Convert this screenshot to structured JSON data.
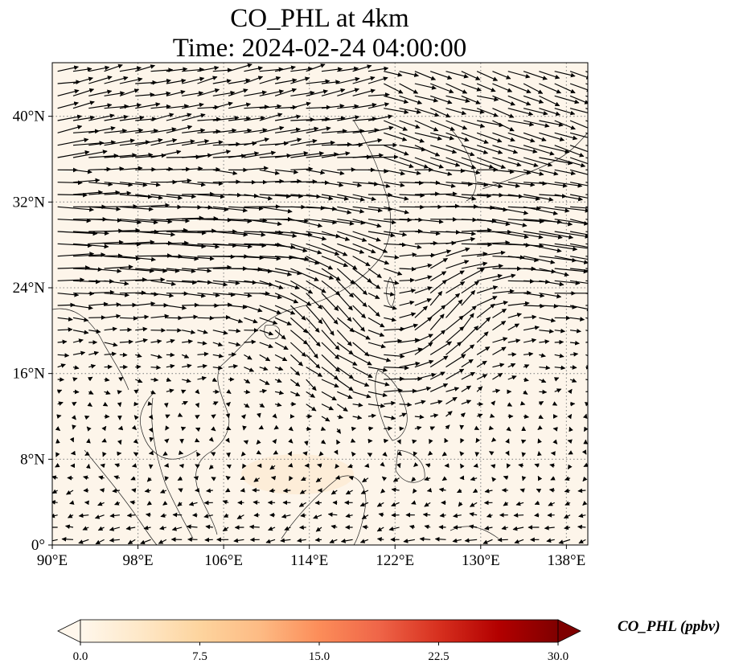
{
  "title": {
    "line1": "CO_PHL at 4km",
    "line2": "Time: 2024-02-24 04:00:00"
  },
  "map": {
    "background_color": "#fdf5ea",
    "gridline_style": "dotted grey",
    "lon_ticks": [
      "90°E",
      "98°E",
      "106°E",
      "114°E",
      "122°E",
      "130°E",
      "138°E"
    ],
    "lat_ticks": [
      "0°",
      "8°N",
      "16°N",
      "24°N",
      "32°N",
      "40°N"
    ],
    "lon_values": [
      90,
      98,
      106,
      114,
      122,
      130,
      138
    ],
    "lat_values": [
      0,
      8,
      16,
      24,
      32,
      40
    ],
    "lon_range": [
      90,
      140
    ],
    "lat_range": [
      0,
      45
    ],
    "wind_pattern": "strong westerlies 25–35°N, anticyclonic circulation near 114–128°E 18–24°N, weak easterlies in tropics"
  },
  "colorbar": {
    "label": "CO_PHL (ppbv)",
    "ticks": [
      "0.0",
      "7.5",
      "15.0",
      "22.5",
      "30.0"
    ],
    "tick_values": [
      0,
      7.5,
      15,
      22.5,
      30
    ],
    "range": [
      0,
      30
    ],
    "colormap": "OrRd",
    "extend": "both",
    "colors": [
      "#fff7ec",
      "#fee8c8",
      "#fdd49e",
      "#fdbb84",
      "#fc8d59",
      "#ef6548",
      "#d7301f",
      "#b30000",
      "#7f0000"
    ]
  }
}
